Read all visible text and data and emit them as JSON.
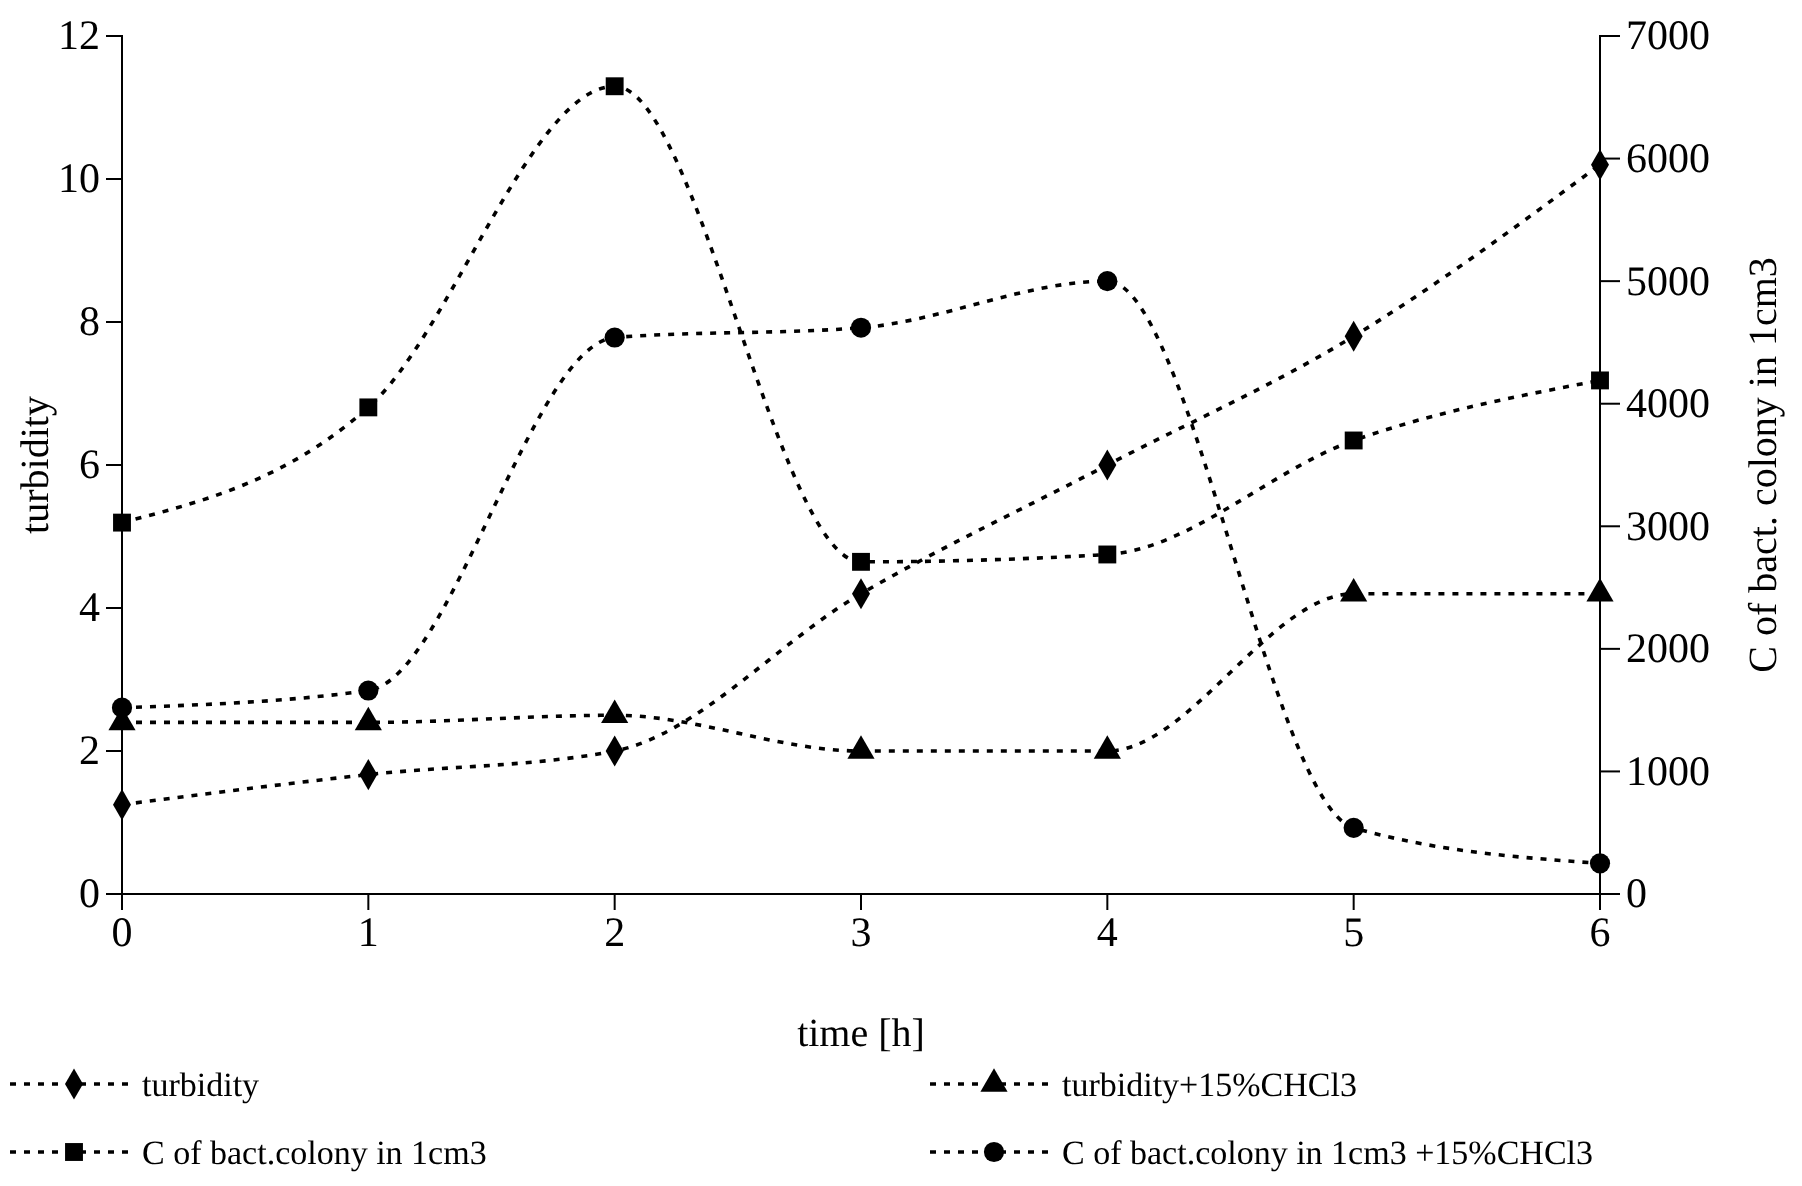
{
  "chart_data": {
    "type": "line",
    "xlabel": "time [h]",
    "ylabel": "turbidity",
    "y2label": "C of bact. colony in 1cm3",
    "x": [
      0,
      1,
      2,
      3,
      4,
      5,
      6
    ],
    "xlim": [
      0,
      6
    ],
    "xticks": [
      0,
      1,
      2,
      3,
      4,
      5,
      6
    ],
    "ylim": [
      0,
      12
    ],
    "yticks": [
      0,
      2,
      4,
      6,
      8,
      10,
      12
    ],
    "y2lim": [
      0,
      7000
    ],
    "y2ticks": [
      0,
      1000,
      2000,
      3000,
      4000,
      5000,
      6000,
      7000
    ],
    "line_style": "dotted",
    "legend": "bottom",
    "series": [
      {
        "name": "turbidity",
        "color": "#000000",
        "marker": "diamond",
        "values": [
          1.25,
          1.67,
          2.0,
          4.2,
          6.0,
          7.8,
          10.2
        ]
      },
      {
        "name": "turbidity+15%CHCl3",
        "color": "#000000",
        "marker": "triangle",
        "values": [
          2.4,
          2.4,
          2.5,
          2.0,
          2.0,
          4.2,
          4.2
        ]
      },
      {
        "name": "C of bact.colony in 1cm3",
        "color": "#000000",
        "marker": "square",
        "axis": "y2",
        "values": [
          3030,
          3970,
          6590,
          2710,
          2770,
          3700,
          4190
        ]
      },
      {
        "name": "C of bact.colony in 1cm3 +15%CHCl3",
        "color": "#000000",
        "marker": "circle",
        "axis": "y2",
        "values": [
          1520,
          1660,
          4540,
          4620,
          5000,
          540,
          250
        ]
      }
    ]
  }
}
